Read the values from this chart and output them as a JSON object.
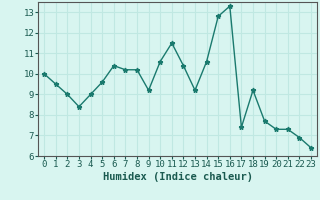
{
  "x": [
    0,
    1,
    2,
    3,
    4,
    5,
    6,
    7,
    8,
    9,
    10,
    11,
    12,
    13,
    14,
    15,
    16,
    17,
    18,
    19,
    20,
    21,
    22,
    23
  ],
  "y": [
    10.0,
    9.5,
    9.0,
    8.4,
    9.0,
    9.6,
    10.4,
    10.2,
    10.2,
    9.2,
    10.6,
    11.5,
    10.4,
    9.2,
    10.6,
    12.8,
    13.3,
    7.4,
    9.2,
    7.7,
    7.3,
    7.3,
    6.9,
    6.4
  ],
  "xlabel": "Humidex (Indice chaleur)",
  "xlim": [
    -0.5,
    23.5
  ],
  "ylim": [
    6,
    13.5
  ],
  "yticks": [
    6,
    7,
    8,
    9,
    10,
    11,
    12,
    13
  ],
  "xticks": [
    0,
    1,
    2,
    3,
    4,
    5,
    6,
    7,
    8,
    9,
    10,
    11,
    12,
    13,
    14,
    15,
    16,
    17,
    18,
    19,
    20,
    21,
    22,
    23
  ],
  "line_color": "#1a7a6e",
  "marker": "*",
  "marker_size": 3.5,
  "bg_color": "#d8f5f0",
  "grid_color": "#c0e8e2",
  "tick_label_size": 6.5,
  "xlabel_size": 7.5
}
